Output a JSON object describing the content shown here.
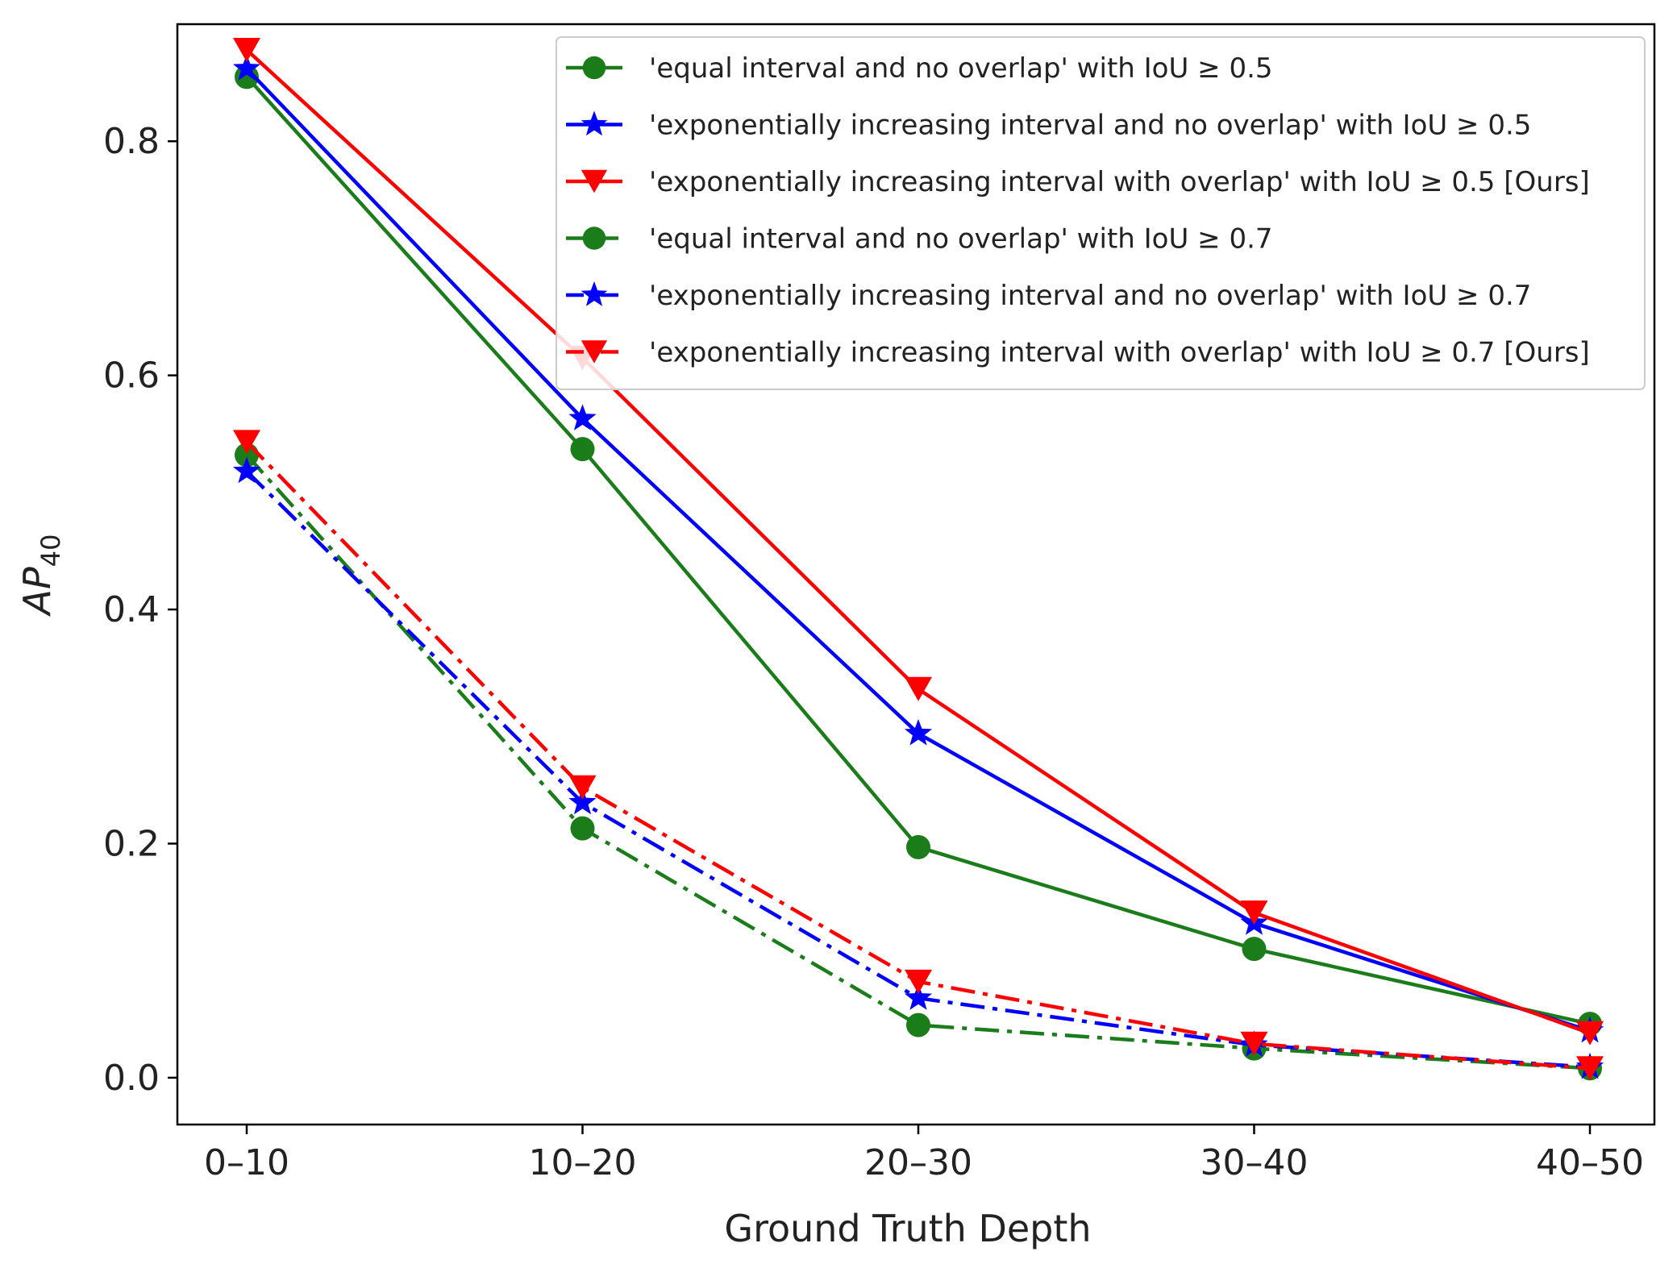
{
  "chart_data": {
    "type": "line",
    "title": "",
    "xlabel": "Ground Truth Depth",
    "ylabel_base": "AP",
    "ylabel_sub": "40",
    "categories": [
      "0–10",
      "10–20",
      "20–30",
      "30–40",
      "40–50"
    ],
    "ylim": [
      -0.04,
      0.9
    ],
    "yticks": [
      0.0,
      0.2,
      0.4,
      0.6,
      0.8
    ],
    "ytick_labels": [
      "0.0",
      "0.2",
      "0.4",
      "0.6",
      "0.8"
    ],
    "grid": false,
    "legend_position": "top-right",
    "series": [
      {
        "name": "'equal interval and no overlap' with IoU ≥ 0.5",
        "values": [
          0.855,
          0.537,
          0.197,
          0.11,
          0.046
        ],
        "color": "#1a7d1a",
        "linestyle": "solid",
        "marker": "circle"
      },
      {
        "name": "'exponentially increasing interval and no overlap' with IoU ≥ 0.5",
        "values": [
          0.862,
          0.563,
          0.294,
          0.132,
          0.04
        ],
        "color": "#0000ff",
        "linestyle": "solid",
        "marker": "star"
      },
      {
        "name": "'exponentially increasing interval with overlap' with IoU ≥ 0.5 [Ours]",
        "values": [
          0.878,
          0.615,
          0.332,
          0.141,
          0.038
        ],
        "color": "#ff0000",
        "linestyle": "solid",
        "marker": "triangle-down"
      },
      {
        "name": "'equal interval and no overlap' with IoU ≥ 0.7",
        "values": [
          0.532,
          0.213,
          0.045,
          0.025,
          0.008
        ],
        "color": "#1a7d1a",
        "linestyle": "dashdot",
        "marker": "circle"
      },
      {
        "name": "'exponentially increasing interval and no overlap' with IoU ≥ 0.7",
        "values": [
          0.518,
          0.235,
          0.068,
          0.028,
          0.009
        ],
        "color": "#0000ff",
        "linestyle": "dashdot",
        "marker": "star"
      },
      {
        "name": "'exponentially increasing interval with overlap' with IoU ≥ 0.7 [Ours]",
        "values": [
          0.543,
          0.248,
          0.082,
          0.029,
          0.008
        ],
        "color": "#ff0000",
        "linestyle": "dashdot",
        "marker": "triangle-down"
      }
    ]
  }
}
